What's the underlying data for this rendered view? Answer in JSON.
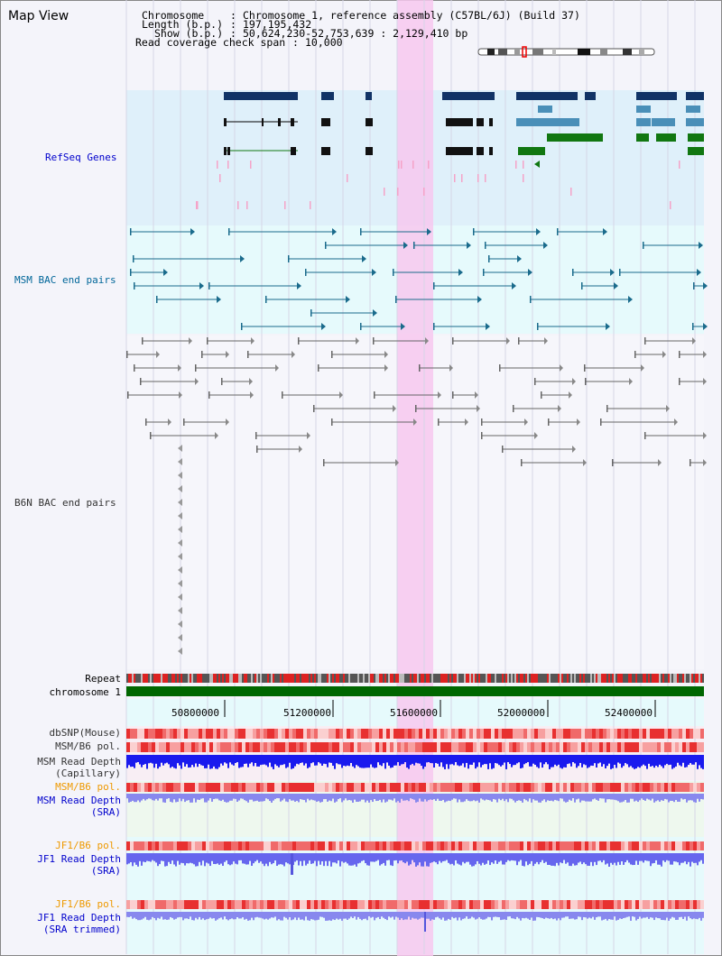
{
  "title": "Map View",
  "info": {
    "chromosome_key": "Chromosome",
    "chromosome_val": "Chromosome 1, reference assembly (C57BL/6J) (Build 37)",
    "length_key": "Length (b.p.)",
    "length_val": "197,195,432",
    "show_key": "Show (b.p.)",
    "show_val": "50,624,230-52,753,639 : 2,129,410 bp",
    "span_key": "Read coverage check span",
    "span_val": "10,000"
  },
  "tracks": {
    "refseq": "RefSeq Genes",
    "msm_bac": "MSM BAC end pairs",
    "b6n_bac": "B6N BAC end pairs",
    "repeat": "Repeat",
    "chromosome": "chromosome 1",
    "dbsnp": "dbSNP(Mouse)",
    "msm_b6_pol_1": "MSM/B6 pol.",
    "msm_depth_cap_1": "MSM Read Depth",
    "msm_depth_cap_2": "(Capillary)",
    "msm_b6_pol_2": "MSM/B6 pol.",
    "msm_depth_sra_1": "MSM Read Depth",
    "msm_depth_sra_2": "(SRA)",
    "jf1_b6_pol_1": "JF1/B6 pol.",
    "jf1_depth_sra_1": "JF1 Read Depth",
    "jf1_depth_sra_2": "(SRA)",
    "jf1_b6_pol_2": "JF1/B6 pol.",
    "jf1_depth_trim_1": "JF1 Read Depth",
    "jf1_depth_trim_2": "(SRA trimmed)"
  },
  "axis": {
    "ticks": [
      "50800000",
      "51200000",
      "51600000",
      "52000000",
      "52400000"
    ]
  },
  "colors": {
    "refseq_label": "#0000cc",
    "msm_label": "#006699",
    "b6n_label": "#333333",
    "orange_label": "#ee9900",
    "blue_label": "#0000cc",
    "highlight": "#f7c8ee"
  }
}
